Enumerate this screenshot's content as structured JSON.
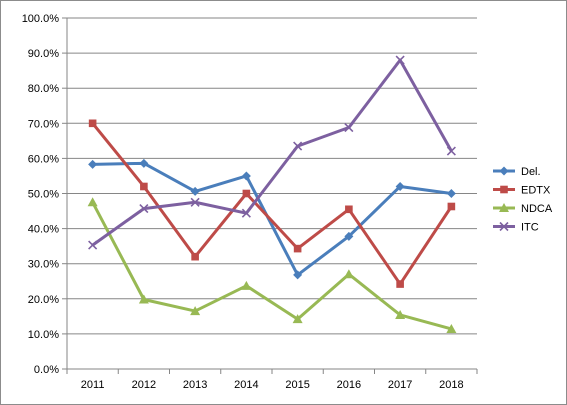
{
  "chart_data": {
    "type": "line",
    "title": "",
    "xlabel": "",
    "ylabel": "",
    "categories": [
      "2011",
      "2012",
      "2013",
      "2014",
      "2015",
      "2016",
      "2017",
      "2018"
    ],
    "ylim": [
      0,
      100
    ],
    "ytick_step": 10,
    "ytick_labels": [
      "0.0%",
      "10.0%",
      "20.0%",
      "30.0%",
      "40.0%",
      "50.0%",
      "60.0%",
      "70.0%",
      "80.0%",
      "90.0%",
      "100.0%"
    ],
    "grid": "horizontal",
    "legend_position": "right",
    "series": [
      {
        "name": "Del.",
        "color": "#4a7ebb",
        "marker": "diamond",
        "values": [
          58.3,
          58.6,
          50.6,
          55.0,
          26.8,
          37.8,
          52.0,
          50.0
        ]
      },
      {
        "name": "EDTX",
        "color": "#be4b48",
        "marker": "square",
        "values": [
          70.0,
          52.0,
          32.0,
          50.0,
          34.3,
          45.5,
          24.2,
          46.3
        ]
      },
      {
        "name": "NDCA",
        "color": "#98b954",
        "marker": "triangle",
        "values": [
          47.5,
          19.8,
          16.5,
          23.7,
          14.2,
          27.0,
          15.4,
          11.4
        ]
      },
      {
        "name": "ITC",
        "color": "#7d60a0",
        "marker": "x",
        "values": [
          35.3,
          45.7,
          47.5,
          44.4,
          63.5,
          68.8,
          88.0,
          62.1
        ]
      }
    ]
  }
}
